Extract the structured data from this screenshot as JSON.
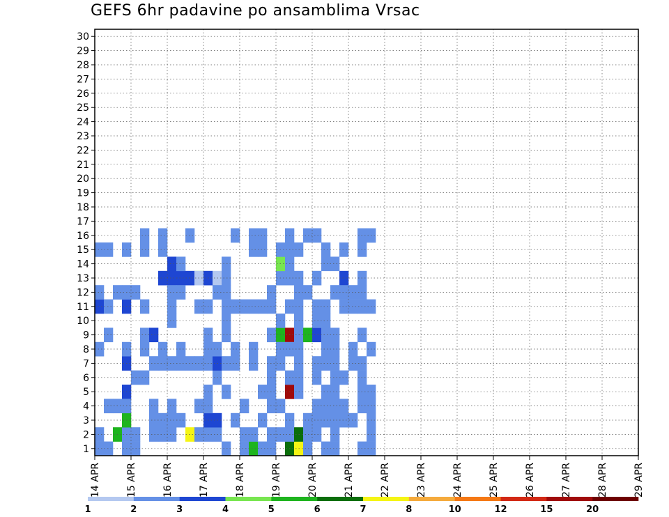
{
  "title": "GEFS 6hr padavine po ansamblima Vrsac",
  "chart_data": {
    "type": "heatmap",
    "title": "GEFS 6hr padavine po ansamblima Vrsac",
    "x_labels": [
      "14 APR",
      "15 APR",
      "16 APR",
      "17 APR",
      "18 APR",
      "19 APR",
      "20 APR",
      "21 APR",
      "22 APR",
      "23 APR",
      "24 APR",
      "25 APR",
      "26 APR",
      "27 APR",
      "28 APR",
      "29 APR"
    ],
    "y_labels": [
      "1",
      "2",
      "3",
      "4",
      "5",
      "6",
      "7",
      "8",
      "9",
      "10",
      "11",
      "12",
      "13",
      "14",
      "15",
      "16",
      "17",
      "18",
      "19",
      "20",
      "21",
      "22",
      "23",
      "24",
      "25",
      "26",
      "27",
      "28",
      "29",
      "30"
    ],
    "steps_per_day": 4,
    "legend": {
      "labels": [
        "1",
        "2",
        "3",
        "4",
        "5",
        "6",
        "7",
        "8",
        "10",
        "12",
        "15",
        "20"
      ],
      "colors": [
        "#b4c8f0",
        "#6490e6",
        "#1e46d2",
        "#78e650",
        "#1eb41e",
        "#0a6e0a",
        "#f5f514",
        "#f5aa3c",
        "#f57814",
        "#d22814",
        "#a00a0a",
        "#6e0000"
      ]
    },
    "grid": true,
    "rows": {
      "1": [
        [
          0,
          0,
          1
        ],
        [
          1,
          0,
          1
        ],
        [
          1,
          2,
          1
        ],
        [
          3,
          1,
          2
        ],
        [
          3,
          0,
          1
        ],
        [
          4,
          0,
          1
        ],
        [
          5,
          2,
          1
        ],
        [
          6,
          2,
          2
        ],
        [
          7,
          3,
          2
        ],
        [
          8,
          3,
          2
        ],
        [
          9,
          3,
          2
        ],
        [
          10,
          3,
          2
        ],
        [
          11,
          3,
          3
        ],
        [
          11,
          3,
          0
        ],
        [
          12,
          3,
          2
        ],
        [
          12,
          1,
          1
        ],
        [
          12,
          2,
          1
        ],
        [
          13,
          3,
          0
        ],
        [
          14,
          0,
          1
        ],
        [
          14,
          1,
          1
        ],
        [
          14,
          2,
          1
        ],
        [
          14,
          3,
          1
        ],
        [
          16,
          0,
          1
        ],
        [
          17,
          0,
          4
        ],
        [
          18,
          0,
          1
        ],
        [
          18,
          1,
          1
        ],
        [
          19,
          0,
          1
        ],
        [
          19,
          1,
          1
        ],
        [
          19,
          2,
          1
        ],
        [
          20,
          2,
          4
        ],
        [
          20,
          3,
          1
        ],
        [
          21,
          0,
          5
        ],
        [
          21,
          1,
          10
        ],
        [
          21,
          2,
          10
        ],
        [
          21,
          3,
          1
        ],
        [
          22,
          0,
          6
        ],
        [
          22,
          1,
          1
        ],
        [
          22,
          2,
          1
        ],
        [
          22,
          3,
          1
        ],
        [
          23,
          0,
          1
        ],
        [
          23,
          2,
          4
        ],
        [
          24,
          2,
          2
        ],
        [
          24,
          3,
          1
        ],
        [
          25,
          0,
          1
        ],
        [
          25,
          1,
          1
        ],
        [
          25,
          2,
          1
        ],
        [
          26,
          0,
          1
        ],
        [
          26,
          1,
          1
        ],
        [
          26,
          2,
          1
        ],
        [
          27,
          3,
          2
        ],
        [
          29,
          0,
          1
        ],
        [
          29,
          1,
          1
        ],
        [
          29,
          2,
          1
        ],
        [
          29,
          3,
          1
        ],
        [
          30,
          0,
          1
        ],
        [
          30,
          1,
          1
        ]
      ],
      "2": [
        [
          0,
          0,
          1
        ],
        [
          2,
          0,
          4
        ],
        [
          3,
          0,
          1
        ],
        [
          4,
          0,
          1
        ],
        [
          4,
          1,
          1
        ],
        [
          5,
          1,
          1
        ],
        [
          6,
          0,
          1
        ],
        [
          7,
          0,
          1
        ],
        [
          8,
          2,
          1
        ],
        [
          8,
          3,
          2
        ],
        [
          8,
          0,
          1
        ],
        [
          9,
          3,
          1
        ],
        [
          10,
          0,
          6
        ],
        [
          11,
          0,
          1
        ],
        [
          12,
          0,
          1
        ],
        [
          13,
          0,
          1
        ],
        [
          13,
          1,
          1
        ],
        [
          14,
          2,
          1
        ],
        [
          14,
          3,
          1
        ],
        [
          16,
          0,
          1
        ],
        [
          17,
          0,
          1
        ],
        [
          19,
          0,
          1
        ],
        [
          19,
          1,
          1
        ],
        [
          20,
          0,
          1
        ],
        [
          20,
          2,
          1
        ],
        [
          20,
          3,
          3
        ],
        [
          21,
          0,
          1
        ],
        [
          21,
          1,
          1
        ],
        [
          21,
          3,
          1
        ],
        [
          22,
          0,
          5
        ],
        [
          22,
          1,
          1
        ],
        [
          22,
          2,
          1
        ],
        [
          23,
          0,
          1
        ],
        [
          24,
          0,
          1
        ],
        [
          24,
          1,
          1
        ],
        [
          24,
          2,
          1
        ],
        [
          25,
          2,
          1
        ],
        [
          25,
          3,
          1
        ],
        [
          26,
          0,
          1
        ],
        [
          26,
          1,
          1
        ],
        [
          26,
          3,
          1
        ],
        [
          27,
          1,
          1
        ],
        [
          29,
          1,
          1
        ],
        [
          30,
          0,
          1
        ]
      ],
      "3": [
        [
          0,
          2,
          2
        ],
        [
          0,
          3,
          1
        ],
        [
          1,
          2,
          1
        ],
        [
          1,
          3,
          1
        ],
        [
          3,
          0,
          4
        ],
        [
          3,
          1,
          2
        ],
        [
          3,
          2,
          2
        ],
        [
          3,
          3,
          1
        ],
        [
          5,
          2,
          1
        ],
        [
          5,
          3,
          1
        ],
        [
          6,
          0,
          1
        ],
        [
          6,
          1,
          1
        ],
        [
          7,
          0,
          1
        ],
        [
          7,
          1,
          1
        ],
        [
          7,
          3,
          1
        ],
        [
          8,
          0,
          1
        ],
        [
          8,
          1,
          1
        ],
        [
          8,
          2,
          1
        ],
        [
          9,
          0,
          1
        ],
        [
          9,
          1,
          1
        ],
        [
          10,
          1,
          1
        ],
        [
          11,
          1,
          1
        ],
        [
          11,
          2,
          1
        ],
        [
          12,
          0,
          2
        ],
        [
          12,
          1,
          1
        ],
        [
          12,
          2,
          1
        ],
        [
          13,
          0,
          2
        ],
        [
          13,
          1,
          2
        ],
        [
          14,
          1,
          1
        ],
        [
          14,
          2,
          1
        ],
        [
          15,
          0,
          1
        ],
        [
          15,
          1,
          1
        ],
        [
          15,
          2,
          1
        ],
        [
          16,
          2,
          1
        ],
        [
          17,
          1,
          1
        ],
        [
          17,
          2,
          1
        ],
        [
          17,
          3,
          1
        ],
        [
          18,
          0,
          1
        ],
        [
          18,
          2,
          1
        ],
        [
          18,
          3,
          1
        ],
        [
          19,
          1,
          1
        ],
        [
          19,
          2,
          1
        ],
        [
          20,
          1,
          1
        ],
        [
          20,
          3,
          1
        ],
        [
          21,
          0,
          1
        ],
        [
          21,
          2,
          1
        ],
        [
          21,
          3,
          1
        ],
        [
          22,
          1,
          1
        ],
        [
          22,
          2,
          1
        ],
        [
          22,
          3,
          1
        ],
        [
          23,
          0,
          1
        ],
        [
          24,
          0,
          1
        ],
        [
          24,
          1,
          1
        ],
        [
          24,
          2,
          1
        ],
        [
          25,
          0,
          1
        ],
        [
          25,
          1,
          1
        ],
        [
          25,
          2,
          1
        ],
        [
          25,
          3,
          1
        ],
        [
          26,
          0,
          1
        ],
        [
          26,
          1,
          1
        ],
        [
          27,
          0,
          1
        ],
        [
          27,
          2,
          1
        ],
        [
          27,
          3,
          1
        ],
        [
          28,
          0,
          1
        ],
        [
          28,
          1,
          1
        ],
        [
          28,
          2,
          1
        ],
        [
          29,
          1,
          1
        ],
        [
          29,
          2,
          1
        ],
        [
          29,
          3,
          1
        ],
        [
          30,
          0,
          1
        ],
        [
          30,
          2,
          1
        ]
      ],
      "4": [
        [
          0,
          1,
          1
        ],
        [
          0,
          2,
          1
        ],
        [
          1,
          0,
          1
        ],
        [
          2,
          0,
          1
        ],
        [
          2,
          2,
          1
        ],
        [
          3,
          0,
          1
        ],
        [
          3,
          1,
          1
        ],
        [
          3,
          2,
          1
        ],
        [
          4,
          2,
          1
        ],
        [
          5,
          1,
          1
        ],
        [
          5,
          3,
          1
        ],
        [
          6,
          0,
          1
        ],
        [
          7,
          1,
          1
        ],
        [
          7,
          3,
          1
        ],
        [
          8,
          0,
          1
        ],
        [
          8,
          2,
          1
        ],
        [
          9,
          1,
          1
        ],
        [
          9,
          2,
          1
        ],
        [
          10,
          3,
          1
        ],
        [
          11,
          0,
          1
        ],
        [
          12,
          0,
          1
        ],
        [
          12,
          1,
          1
        ],
        [
          13,
          1,
          1
        ],
        [
          13,
          2,
          1
        ],
        [
          14,
          2,
          1
        ],
        [
          15,
          1,
          1
        ],
        [
          15,
          3,
          1
        ],
        [
          16,
          0,
          1
        ],
        [
          17,
          1,
          1
        ],
        [
          17,
          3,
          1
        ],
        [
          18,
          3,
          1
        ],
        [
          19,
          0,
          1
        ],
        [
          19,
          2,
          1
        ],
        [
          20,
          0,
          1
        ],
        [
          20,
          1,
          1
        ],
        [
          21,
          1,
          1
        ],
        [
          21,
          3,
          1
        ],
        [
          22,
          1,
          1
        ],
        [
          22,
          2,
          1
        ],
        [
          23,
          2,
          1
        ],
        [
          23,
          3,
          1
        ],
        [
          24,
          0,
          1
        ],
        [
          24,
          3,
          1
        ],
        [
          25,
          0,
          1
        ],
        [
          25,
          1,
          1
        ],
        [
          26,
          0,
          1
        ],
        [
          26,
          1,
          1
        ],
        [
          26,
          2,
          1
        ],
        [
          27,
          0,
          1
        ],
        [
          27,
          2,
          1
        ],
        [
          28,
          1,
          1
        ],
        [
          28,
          2,
          1
        ],
        [
          29,
          0,
          1
        ],
        [
          29,
          2,
          1
        ],
        [
          29,
          3,
          1
        ],
        [
          30,
          0,
          1
        ],
        [
          30,
          1,
          1
        ],
        [
          30,
          3,
          1
        ]
      ]
    }
  },
  "axes": {
    "y_ticks": [
      "1",
      "2",
      "3",
      "4",
      "5",
      "6",
      "7",
      "8",
      "9",
      "10",
      "11",
      "12",
      "13",
      "14",
      "15",
      "16",
      "17",
      "18",
      "19",
      "20",
      "21",
      "22",
      "23",
      "24",
      "25",
      "26",
      "27",
      "28",
      "29",
      "30"
    ],
    "x_ticks": [
      "14 APR",
      "15 APR",
      "16 APR",
      "17 APR",
      "18 APR",
      "19 APR",
      "20 APR",
      "21 APR",
      "22 APR",
      "23 APR",
      "24 APR",
      "25 APR",
      "26 APR",
      "27 APR",
      "28 APR",
      "29 APR"
    ]
  }
}
